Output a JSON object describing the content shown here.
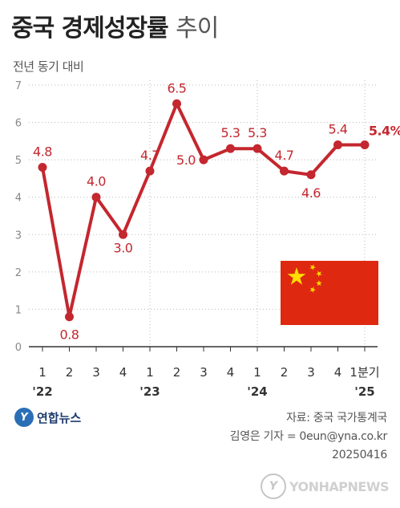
{
  "title": {
    "bold": "중국 경제성장률",
    "light": "추이"
  },
  "subtitle": "전년 동기 대비",
  "colors": {
    "line": "#c4272f",
    "label": "#c4272f",
    "grid": "#bbbbbb",
    "axis": "#333333",
    "flag_red": "#de2910",
    "flag_star": "#ffde00"
  },
  "chart_data": {
    "type": "line",
    "title": "중국 경제성장률 추이",
    "ylabel": "",
    "xlabel": "",
    "ylim": [
      0,
      7
    ],
    "yticks": [
      0,
      1,
      2,
      3,
      4,
      5,
      6,
      7
    ],
    "categories": [
      "1",
      "2",
      "3",
      "4",
      "1",
      "2",
      "3",
      "4",
      "1",
      "2",
      "3",
      "4",
      "1분기"
    ],
    "year_labels": [
      {
        "index": 0,
        "label": "'22"
      },
      {
        "index": 4,
        "label": "'23"
      },
      {
        "index": 8,
        "label": "'24"
      },
      {
        "index": 12,
        "label": "'25"
      }
    ],
    "year_dividers": [
      4,
      8,
      12
    ],
    "series": [
      {
        "values": [
          4.8,
          0.8,
          4.0,
          3.0,
          4.7,
          6.5,
          5.0,
          5.3,
          5.3,
          4.7,
          4.6,
          5.4,
          5.4
        ],
        "labels": [
          "4.8",
          "0.8",
          "4.0",
          "3.0",
          "4.7",
          "6.5",
          "5.0",
          "5.3",
          "5.3",
          "4.7",
          "4.6",
          "5.4",
          "5.4%"
        ]
      }
    ]
  },
  "flag_icon": "china-flag-icon",
  "footer": {
    "brand": "연합뉴스",
    "brand_mark": "Y",
    "source": "자료: 중국 국가통계국",
    "author": "김영은 기자 = 0eun@yna.co.kr",
    "date": "20250416",
    "watermark": "YONHAPNEWS"
  }
}
